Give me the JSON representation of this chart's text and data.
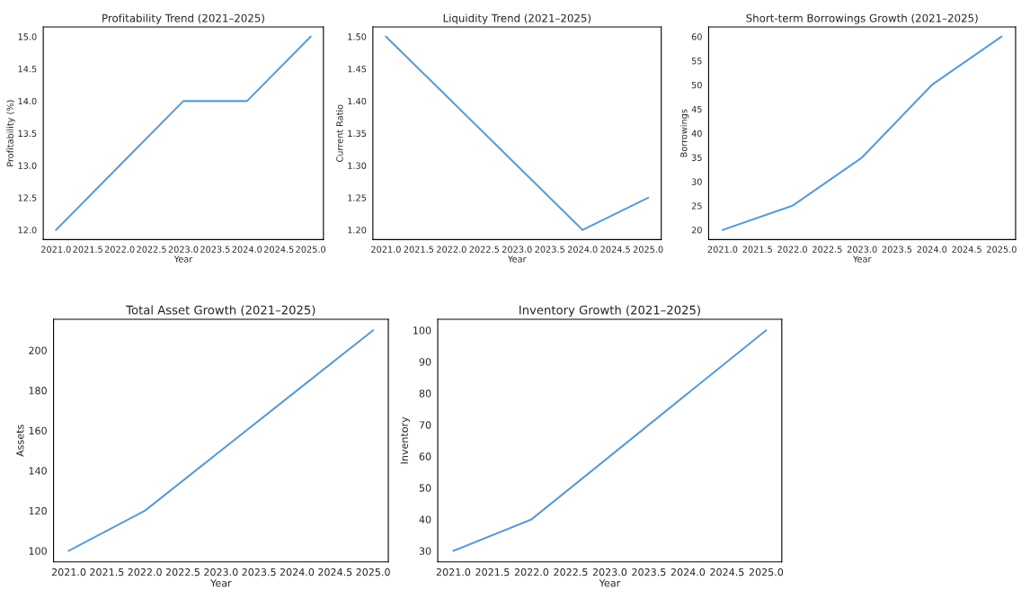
{
  "chart_data": [
    {
      "type": "line",
      "title": "Profitability Trend (2021–2025)",
      "xlabel": "Year",
      "ylabel": "Profitability (%)",
      "x": [
        2021,
        2022,
        2023,
        2024,
        2025
      ],
      "series": [
        {
          "color": "#5b9bd5",
          "values": [
            12,
            13,
            14,
            14,
            15
          ]
        }
      ],
      "xlim": [
        2020.8,
        2025.2
      ],
      "xticks": [
        {
          "value": 2021,
          "label": "2021.0"
        },
        2021.5,
        {
          "value": 2022,
          "label": "2022.0"
        },
        2022.5,
        {
          "value": 2023,
          "label": "2023.0"
        },
        2023.5,
        {
          "value": 2024,
          "label": "2024.0"
        },
        2024.5,
        {
          "value": 2025,
          "label": "2025.0"
        }
      ],
      "ylim": [
        11.85,
        15.15
      ],
      "yticks": [
        {
          "value": 12,
          "label": "12.0"
        },
        12.5,
        {
          "value": 13,
          "label": "13.0"
        },
        13.5,
        {
          "value": 14,
          "label": "14.0"
        },
        14.5,
        {
          "value": 15,
          "label": "15.0"
        }
      ],
      "grid": false,
      "legend": false
    },
    {
      "type": "line",
      "title": "Liquidity Trend (2021–2025)",
      "xlabel": "Year",
      "ylabel": "Current Ratio",
      "x": [
        2021,
        2022,
        2023,
        2024,
        2025
      ],
      "series": [
        {
          "color": "#5b9bd5",
          "values": [
            1.5,
            1.4,
            1.3,
            1.2,
            1.25
          ]
        }
      ],
      "xlim": [
        2020.8,
        2025.2
      ],
      "xticks": [
        {
          "value": 2021,
          "label": "2021.0"
        },
        2021.5,
        {
          "value": 2022,
          "label": "2022.0"
        },
        2022.5,
        {
          "value": 2023,
          "label": "2023.0"
        },
        2023.5,
        {
          "value": 2024,
          "label": "2024.0"
        },
        2024.5,
        {
          "value": 2025,
          "label": "2025.0"
        }
      ],
      "ylim": [
        1.185,
        1.515
      ],
      "yticks": [
        {
          "value": 1.2,
          "label": "1.20"
        },
        1.25,
        {
          "value": 1.3,
          "label": "1.30"
        },
        1.35,
        {
          "value": 1.4,
          "label": "1.40"
        },
        1.45,
        {
          "value": 1.5,
          "label": "1.50"
        }
      ],
      "grid": false,
      "legend": false
    },
    {
      "type": "line",
      "title": "Short-term Borrowings Growth (2021–2025)",
      "xlabel": "Year",
      "ylabel": "Borrowings",
      "x": [
        2021,
        2022,
        2023,
        2024,
        2025
      ],
      "series": [
        {
          "color": "#5b9bd5",
          "values": [
            20,
            25,
            35,
            50,
            60
          ]
        }
      ],
      "xlim": [
        2020.8,
        2025.2
      ],
      "xticks": [
        {
          "value": 2021,
          "label": "2021.0"
        },
        2021.5,
        {
          "value": 2022,
          "label": "2022.0"
        },
        2022.5,
        {
          "value": 2023,
          "label": "2023.0"
        },
        2023.5,
        {
          "value": 2024,
          "label": "2024.0"
        },
        2024.5,
        {
          "value": 2025,
          "label": "2025.0"
        }
      ],
      "ylim": [
        18,
        62
      ],
      "yticks": [
        20,
        25,
        30,
        35,
        40,
        45,
        50,
        55,
        60
      ],
      "grid": false,
      "legend": false
    },
    {
      "type": "line",
      "title": "Total Asset Growth (2021–2025)",
      "xlabel": "Year",
      "ylabel": "Assets",
      "x": [
        2021,
        2022,
        2023,
        2024,
        2025
      ],
      "series": [
        {
          "color": "#5b9bd5",
          "values": [
            100,
            120,
            150,
            180,
            210
          ]
        }
      ],
      "xlim": [
        2020.8,
        2025.2
      ],
      "xticks": [
        {
          "value": 2021,
          "label": "2021.0"
        },
        2021.5,
        {
          "value": 2022,
          "label": "2022.0"
        },
        2022.5,
        {
          "value": 2023,
          "label": "2023.0"
        },
        2023.5,
        {
          "value": 2024,
          "label": "2024.0"
        },
        2024.5,
        {
          "value": 2025,
          "label": "2025.0"
        }
      ],
      "ylim": [
        94.5,
        215.5
      ],
      "yticks": [
        100,
        120,
        140,
        160,
        180,
        200
      ],
      "grid": false,
      "legend": false
    },
    {
      "type": "line",
      "title": "Inventory Growth (2021–2025)",
      "xlabel": "Year",
      "ylabel": "Inventory",
      "x": [
        2021,
        2022,
        2023,
        2024,
        2025
      ],
      "series": [
        {
          "color": "#5b9bd5",
          "values": [
            30,
            40,
            60,
            80,
            100
          ]
        }
      ],
      "xlim": [
        2020.8,
        2025.2
      ],
      "xticks": [
        {
          "value": 2021,
          "label": "2021.0"
        },
        2021.5,
        {
          "value": 2022,
          "label": "2022.0"
        },
        2022.5,
        {
          "value": 2023,
          "label": "2023.0"
        },
        2023.5,
        {
          "value": 2024,
          "label": "2024.0"
        },
        2024.5,
        {
          "value": 2025,
          "label": "2025.0"
        }
      ],
      "ylim": [
        26.5,
        103.5
      ],
      "yticks": [
        30,
        40,
        50,
        60,
        70,
        80,
        90,
        100
      ],
      "grid": false,
      "legend": false
    }
  ]
}
